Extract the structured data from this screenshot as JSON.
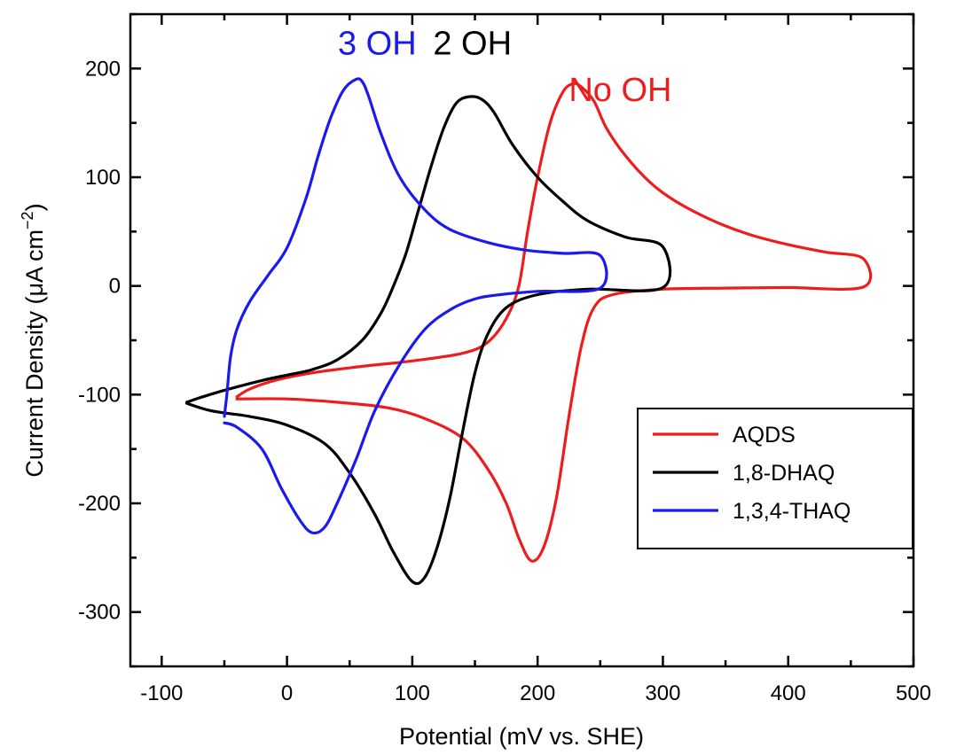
{
  "chart_data": {
    "type": "line",
    "xlabel": "Potential (mV vs. SHE)",
    "ylabel_prefix": "Current Density (",
    "ylabel_mu": "μ",
    "ylabel_mid": "A cm",
    "ylabel_sup": "−2",
    "ylabel_suffix": ")",
    "xlim": [
      -125,
      500
    ],
    "ylim": [
      -350,
      250
    ],
    "xticks": [
      -100,
      0,
      100,
      200,
      300,
      400,
      500
    ],
    "yticks": [
      -300,
      -200,
      -100,
      0,
      100,
      200
    ],
    "xtick_labels": [
      "-100",
      "0",
      "100",
      "200",
      "300",
      "400",
      "500"
    ],
    "ytick_labels": [
      "-300",
      "-200",
      "-100",
      "0",
      "100",
      "200"
    ],
    "grid": false,
    "legend_position": "lower-right",
    "series": [
      {
        "name": "AQDS",
        "color": "#ee1c1c",
        "points": [
          [
            -40,
            -104
          ],
          [
            0,
            -104
          ],
          [
            40,
            -107
          ],
          [
            80,
            -112
          ],
          [
            110,
            -122
          ],
          [
            140,
            -140
          ],
          [
            160,
            -168
          ],
          [
            175,
            -200
          ],
          [
            185,
            -232
          ],
          [
            195,
            -253
          ],
          [
            205,
            -240
          ],
          [
            215,
            -195
          ],
          [
            225,
            -120
          ],
          [
            235,
            -55
          ],
          [
            245,
            -20
          ],
          [
            260,
            -8
          ],
          [
            300,
            -3
          ],
          [
            350,
            -2
          ],
          [
            400,
            -1.5
          ],
          [
            460,
            -1
          ],
          [
            460,
            25
          ],
          [
            430,
            31
          ],
          [
            400,
            38
          ],
          [
            370,
            47
          ],
          [
            340,
            60
          ],
          [
            310,
            78
          ],
          [
            290,
            95
          ],
          [
            270,
            120
          ],
          [
            255,
            145
          ],
          [
            245,
            170
          ],
          [
            235,
            183
          ],
          [
            228,
            186
          ],
          [
            220,
            178
          ],
          [
            210,
            150
          ],
          [
            200,
            100
          ],
          [
            192,
            50
          ],
          [
            185,
            0
          ],
          [
            175,
            -30
          ],
          [
            160,
            -52
          ],
          [
            140,
            -62
          ],
          [
            100,
            -69
          ],
          [
            60,
            -74
          ],
          [
            20,
            -80
          ],
          [
            -10,
            -87
          ],
          [
            -30,
            -95
          ],
          [
            -40,
            -102
          ]
        ]
      },
      {
        "name": "1,8-DHAQ",
        "color": "#000000",
        "points": [
          [
            -80,
            -108
          ],
          [
            -60,
            -115
          ],
          [
            -30,
            -120
          ],
          [
            0,
            -128
          ],
          [
            30,
            -145
          ],
          [
            50,
            -172
          ],
          [
            70,
            -210
          ],
          [
            85,
            -245
          ],
          [
            100,
            -272
          ],
          [
            110,
            -268
          ],
          [
            120,
            -240
          ],
          [
            130,
            -195
          ],
          [
            140,
            -135
          ],
          [
            150,
            -80
          ],
          [
            160,
            -45
          ],
          [
            175,
            -20
          ],
          [
            200,
            -8
          ],
          [
            240,
            -3
          ],
          [
            300,
            -1.5
          ],
          [
            300,
            36
          ],
          [
            270,
            45
          ],
          [
            240,
            60
          ],
          [
            220,
            78
          ],
          [
            200,
            100
          ],
          [
            180,
            130
          ],
          [
            165,
            160
          ],
          [
            155,
            172
          ],
          [
            145,
            174
          ],
          [
            135,
            168
          ],
          [
            125,
            145
          ],
          [
            115,
            110
          ],
          [
            105,
            70
          ],
          [
            95,
            30
          ],
          [
            85,
            0
          ],
          [
            75,
            -25
          ],
          [
            60,
            -50
          ],
          [
            40,
            -68
          ],
          [
            20,
            -77
          ],
          [
            0,
            -82
          ],
          [
            -20,
            -87
          ],
          [
            -50,
            -96
          ],
          [
            -70,
            -103
          ],
          [
            -80,
            -107
          ]
        ]
      },
      {
        "name": "1,3,4-THAQ",
        "color": "#1a1aee",
        "points": [
          [
            -50,
            -126
          ],
          [
            -40,
            -130
          ],
          [
            -20,
            -150
          ],
          [
            -5,
            -185
          ],
          [
            10,
            -215
          ],
          [
            20,
            -227
          ],
          [
            30,
            -222
          ],
          [
            40,
            -200
          ],
          [
            55,
            -160
          ],
          [
            70,
            -115
          ],
          [
            90,
            -72
          ],
          [
            110,
            -40
          ],
          [
            130,
            -22
          ],
          [
            150,
            -12
          ],
          [
            170,
            -8
          ],
          [
            200,
            -5
          ],
          [
            250,
            -2
          ],
          [
            250,
            28
          ],
          [
            220,
            30
          ],
          [
            190,
            33
          ],
          [
            160,
            40
          ],
          [
            130,
            52
          ],
          [
            110,
            70
          ],
          [
            90,
            100
          ],
          [
            75,
            140
          ],
          [
            65,
            175
          ],
          [
            60,
            188
          ],
          [
            55,
            190
          ],
          [
            45,
            180
          ],
          [
            35,
            155
          ],
          [
            25,
            120
          ],
          [
            15,
            80
          ],
          [
            0,
            35
          ],
          [
            -15,
            10
          ],
          [
            -30,
            -15
          ],
          [
            -40,
            -40
          ],
          [
            -45,
            -65
          ],
          [
            -48,
            -100
          ],
          [
            -50,
            -120
          ]
        ]
      }
    ],
    "annotations": [
      {
        "text": "3 OH",
        "color": "#1a1aee",
        "x": 72,
        "y": 213
      },
      {
        "text": "2 OH",
        "color": "#000000",
        "x": 148,
        "y": 213
      },
      {
        "text": "No OH",
        "color": "#ee1c1c",
        "x": 266,
        "y": 170
      }
    ]
  }
}
